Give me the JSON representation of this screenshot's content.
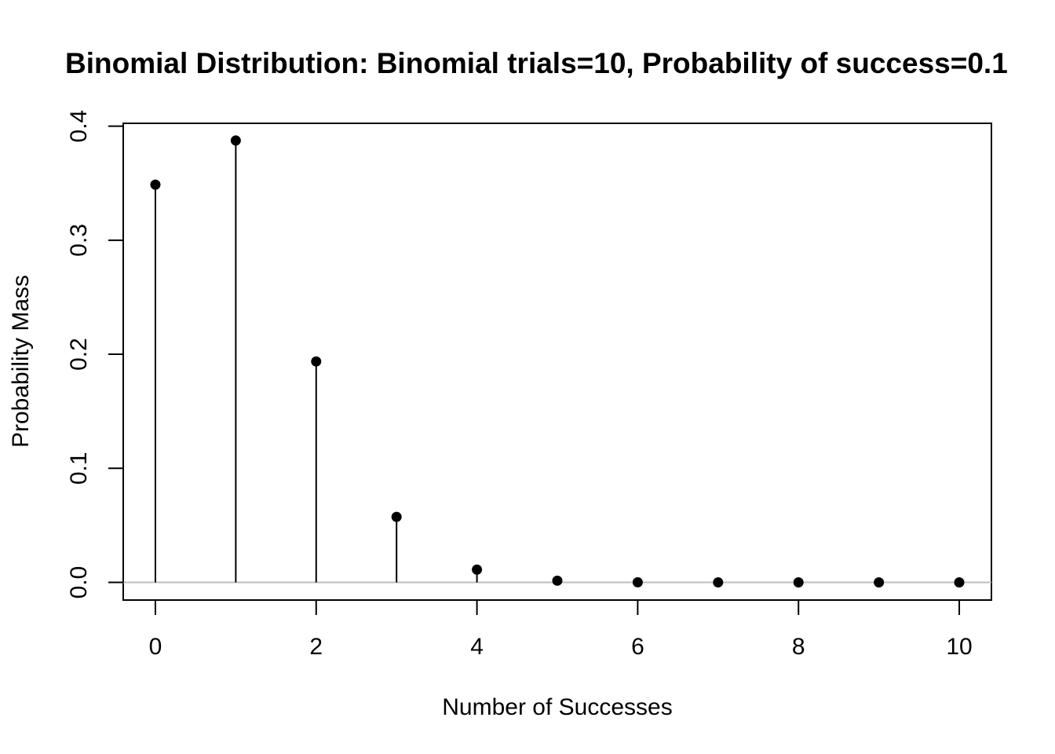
{
  "chart_data": {
    "type": "scatter",
    "title": "Binomial Distribution:  Binomial trials=10, Probability of success=0.1",
    "xlabel": "Number of Successes",
    "ylabel": "Probability Mass",
    "x": [
      0,
      1,
      2,
      3,
      4,
      5,
      6,
      7,
      8,
      9,
      10
    ],
    "y": [
      0.3487,
      0.3874,
      0.1937,
      0.0574,
      0.0112,
      0.0015,
      0.0001,
      0.0,
      0.0,
      0.0,
      0.0
    ],
    "xlim": [
      -0.4,
      10.4
    ],
    "ylim": [
      -0.0155,
      0.4025
    ],
    "x_ticks": [
      "0",
      "2",
      "4",
      "6",
      "8",
      "10"
    ],
    "y_ticks": [
      "0.0",
      "0.1",
      "0.2",
      "0.3",
      "0.4"
    ],
    "grid": false,
    "legend": "none",
    "colors": {
      "points": "#000000",
      "stems": "#000000",
      "baseline": "#bebebe",
      "frame": "#000000"
    }
  }
}
